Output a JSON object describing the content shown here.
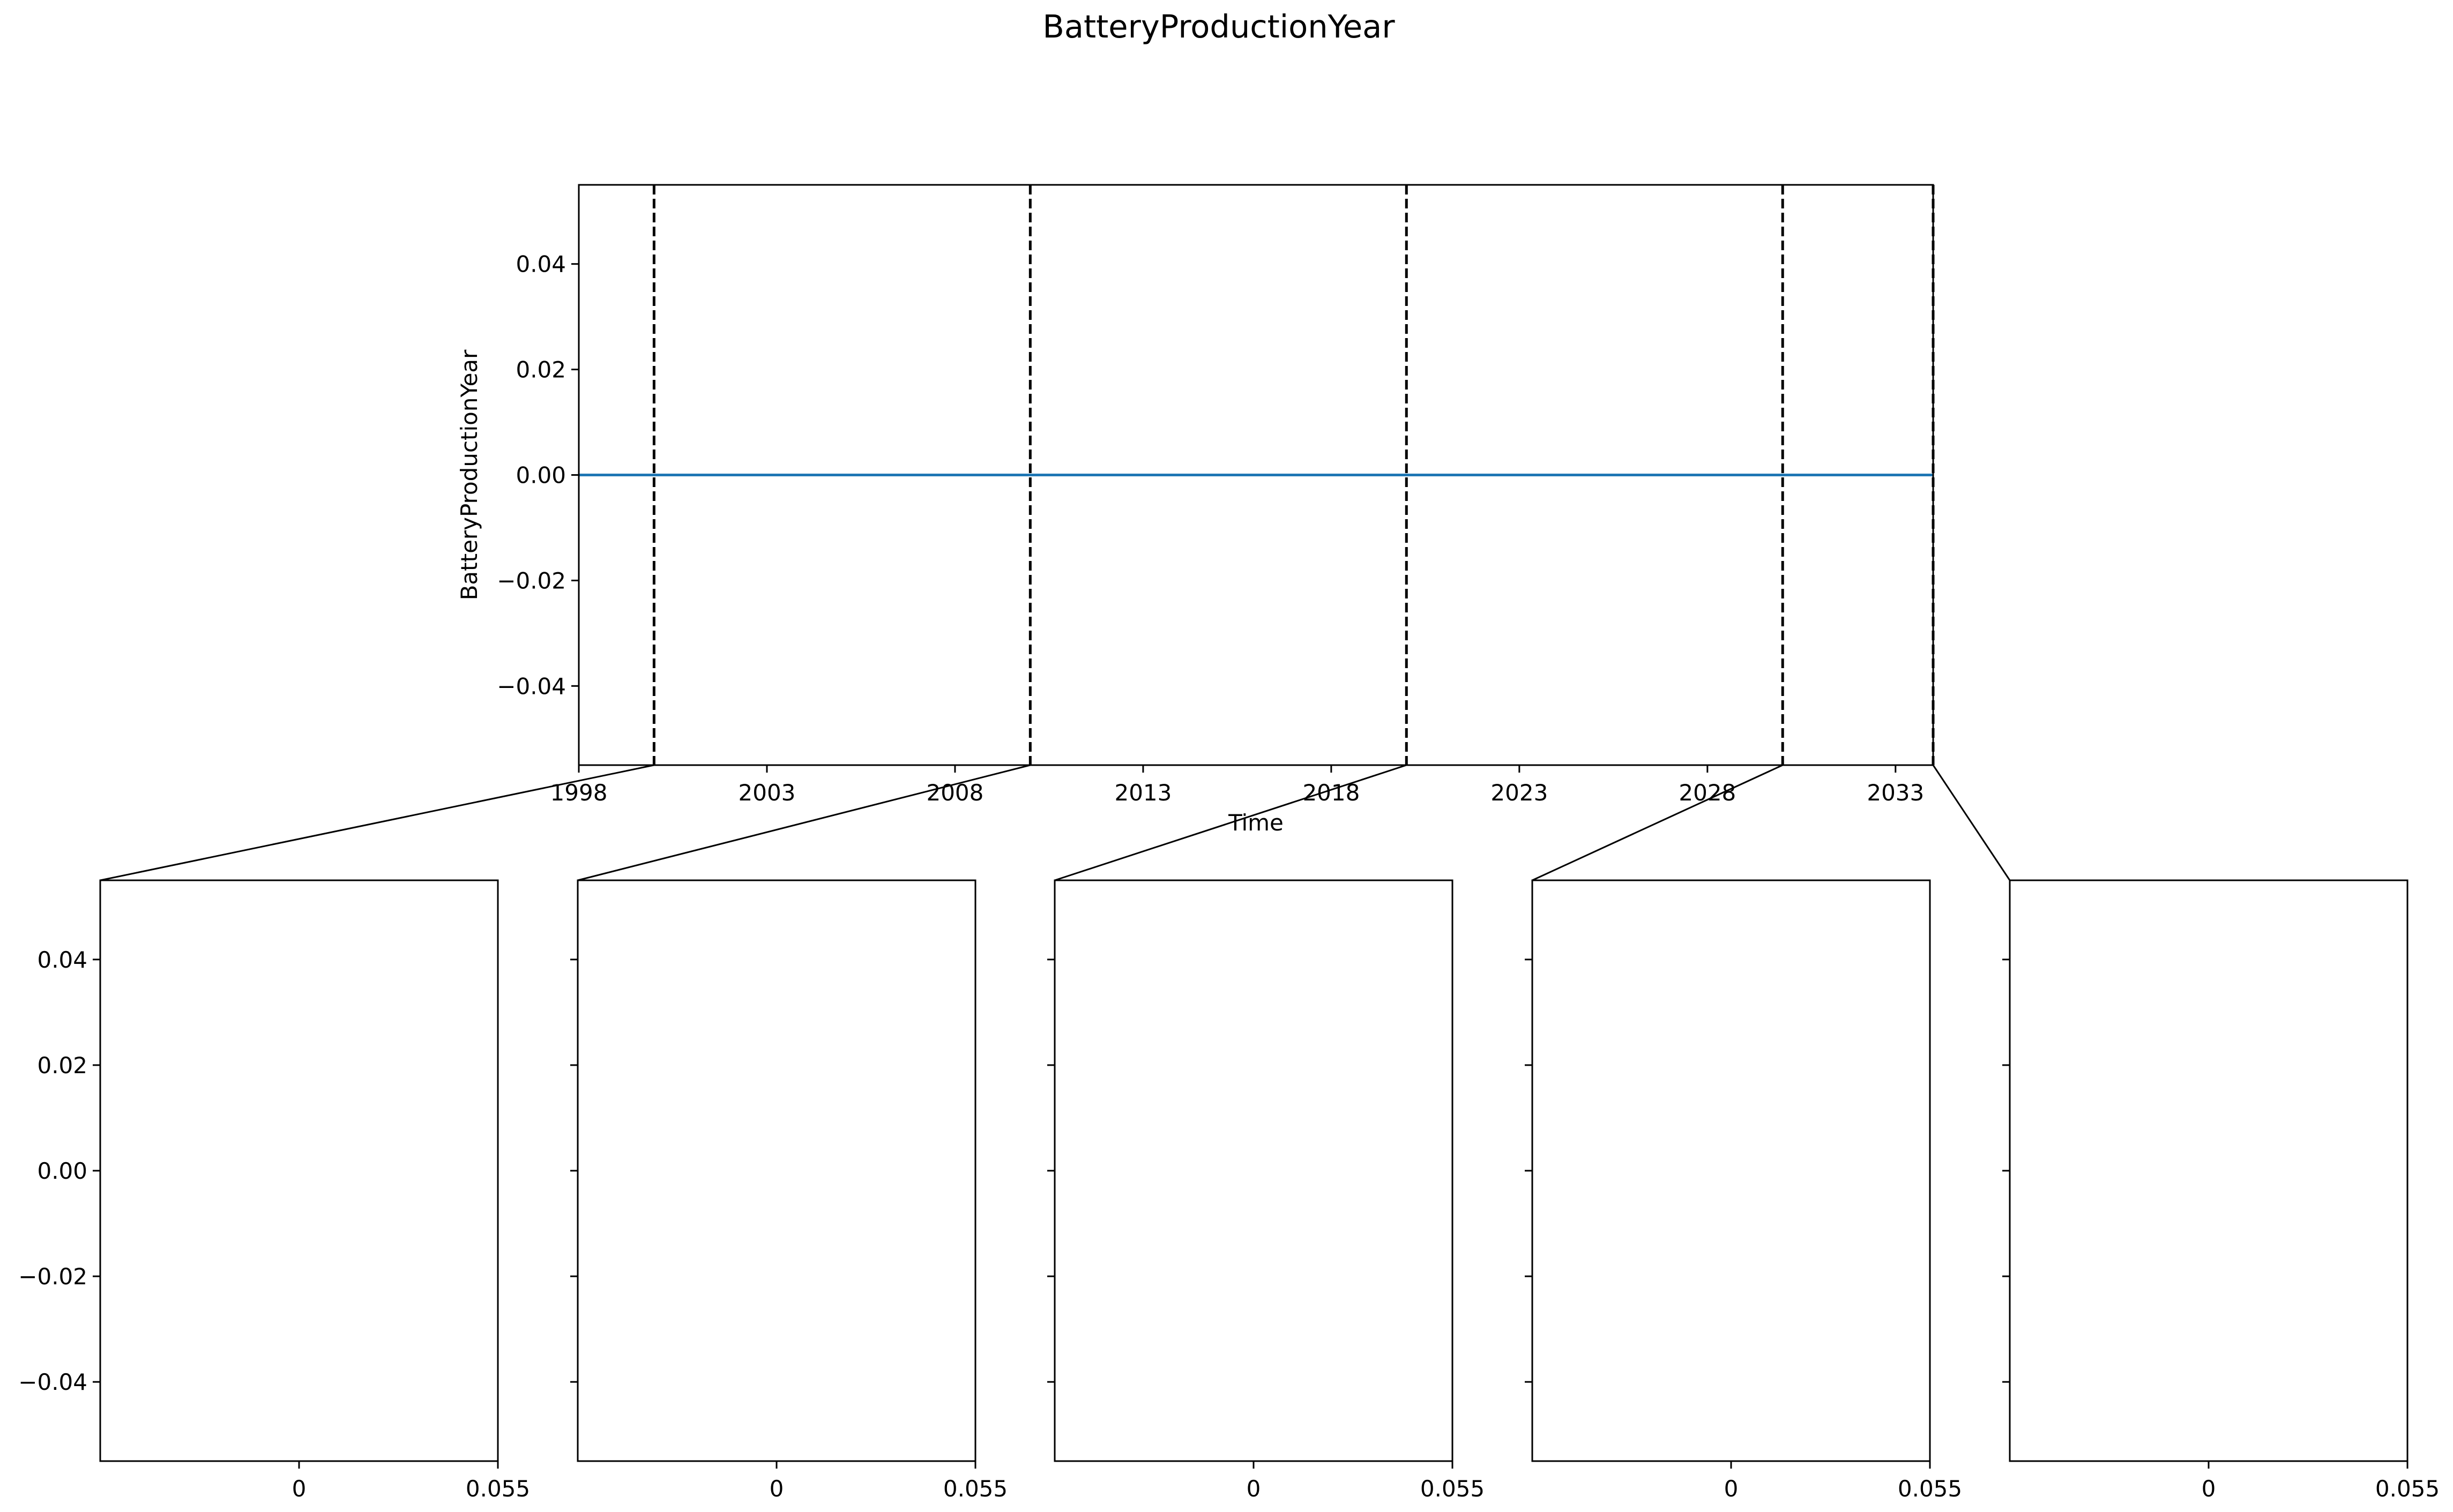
{
  "figure": {
    "title": "BatteryProductionYear"
  },
  "chart_data": [
    {
      "type": "line",
      "panel": "main",
      "xlabel": "Time",
      "ylabel": "BatteryProductionYear",
      "x_ticks": [
        "1998",
        "2003",
        "2008",
        "2013",
        "2018",
        "2023",
        "2028",
        "2033"
      ],
      "x_tick_values": [
        1998,
        2003,
        2008,
        2013,
        2018,
        2023,
        2028,
        2033
      ],
      "xlim": [
        1998,
        2034
      ],
      "y_ticks": [
        "0.04",
        "0.02",
        "0.00",
        "−0.02",
        "−0.04"
      ],
      "y_tick_values": [
        0.04,
        0.02,
        0.0,
        -0.02,
        -0.04
      ],
      "ylim": [
        -0.055,
        0.055
      ],
      "grid": false,
      "series": [
        {
          "x": [
            1998,
            2034
          ],
          "y": [
            0,
            0
          ],
          "color": "#1f77b4"
        }
      ],
      "split_lines_x": [
        2000,
        2010,
        2020,
        2030,
        2034
      ],
      "split_line_color": "#000000"
    },
    {
      "type": "bar",
      "panel": "sub-1",
      "orientation": "horizontal",
      "x_ticks": [
        "0",
        "0.055"
      ],
      "x_tick_values": [
        0,
        0.055
      ],
      "xlim": [
        -0.055,
        0.055
      ],
      "y_ticks": [
        "0.04",
        "0.02",
        "0.00",
        "−0.02",
        "−0.04"
      ],
      "y_tick_values": [
        0.04,
        0.02,
        0.0,
        -0.02,
        -0.04
      ],
      "ylim": [
        -0.055,
        0.055
      ],
      "show_y_tick_labels": true,
      "values": []
    },
    {
      "type": "bar",
      "panel": "sub-2",
      "orientation": "horizontal",
      "x_ticks": [
        "0",
        "0.055"
      ],
      "x_tick_values": [
        0,
        0.055
      ],
      "xlim": [
        -0.055,
        0.055
      ],
      "y_tick_values": [
        0.04,
        0.02,
        0.0,
        -0.02,
        -0.04
      ],
      "ylim": [
        -0.055,
        0.055
      ],
      "show_y_tick_labels": false,
      "values": []
    },
    {
      "type": "bar",
      "panel": "sub-3",
      "orientation": "horizontal",
      "x_ticks": [
        "0",
        "0.055"
      ],
      "x_tick_values": [
        0,
        0.055
      ],
      "xlim": [
        -0.055,
        0.055
      ],
      "y_tick_values": [
        0.04,
        0.02,
        0.0,
        -0.02,
        -0.04
      ],
      "ylim": [
        -0.055,
        0.055
      ],
      "show_y_tick_labels": false,
      "values": []
    },
    {
      "type": "bar",
      "panel": "sub-4",
      "orientation": "horizontal",
      "x_ticks": [
        "0",
        "0.055"
      ],
      "x_tick_values": [
        0,
        0.055
      ],
      "xlim": [
        -0.055,
        0.055
      ],
      "y_tick_values": [
        0.04,
        0.02,
        0.0,
        -0.02,
        -0.04
      ],
      "ylim": [
        -0.055,
        0.055
      ],
      "show_y_tick_labels": false,
      "values": []
    },
    {
      "type": "bar",
      "panel": "sub-5",
      "orientation": "horizontal",
      "x_ticks": [
        "0",
        "0.055"
      ],
      "x_tick_values": [
        0,
        0.055
      ],
      "xlim": [
        -0.055,
        0.055
      ],
      "y_tick_values": [
        0.04,
        0.02,
        0.0,
        -0.02,
        -0.04
      ],
      "ylim": [
        -0.055,
        0.055
      ],
      "show_y_tick_labels": false,
      "values": []
    }
  ]
}
